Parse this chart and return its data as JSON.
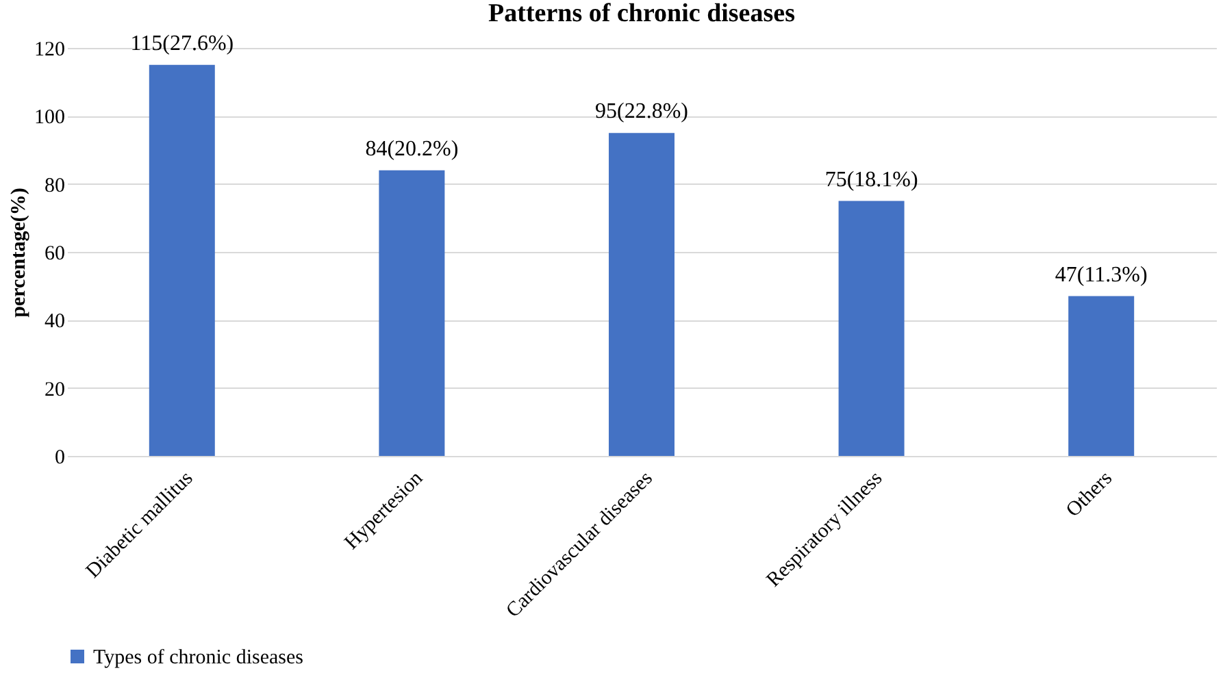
{
  "chart_data": {
    "type": "bar",
    "title": "Patterns of chronic diseases",
    "ylabel": "percentage(%)",
    "categories": [
      "Diabetic mallitus",
      "Hypertesion",
      "Cardiovascular diseases",
      "Respiratory illness",
      "Others"
    ],
    "series": [
      {
        "name": "Types of chronic diseases",
        "color": "#4472c4",
        "values": [
          115,
          84,
          95,
          75,
          47
        ],
        "value_labels": [
          "115(27.6%)",
          "84(20.2%)",
          "95(22.8%)",
          "75(18.1%)",
          "47(11.3%)"
        ]
      }
    ],
    "ylim": [
      0,
      120
    ],
    "yticks": [
      0,
      20,
      40,
      60,
      80,
      100,
      120
    ],
    "grid": "y",
    "legend": "bottom"
  }
}
